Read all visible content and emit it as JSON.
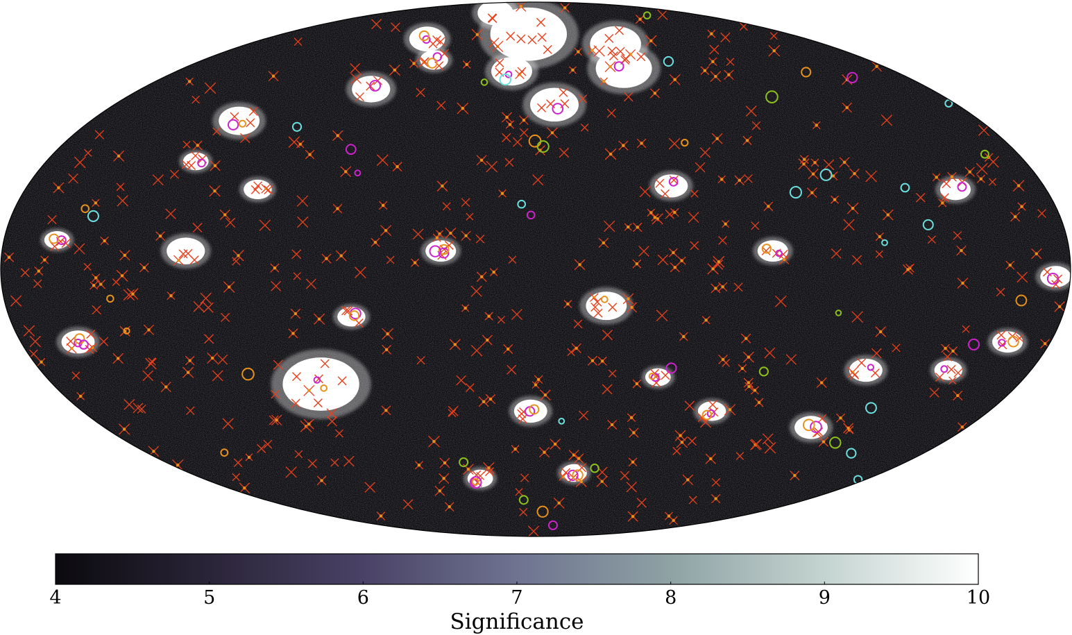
{
  "chart_data": {
    "type": "heatmap",
    "title": "",
    "projection": "mollweide",
    "colorbar": {
      "label": "Significance",
      "ticks": [
        "4",
        "5",
        "6",
        "7",
        "8",
        "9",
        "10"
      ],
      "range": [
        4,
        10
      ],
      "orientation": "horizontal",
      "placement": "bottom",
      "colors": [
        "#0b0a0e",
        "#2a2438",
        "#4a4266",
        "#6e7390",
        "#8fa2a4",
        "#c4d4d0",
        "#ffffff"
      ]
    },
    "background_color": "#0d0c10",
    "bright_regions": [
      {
        "lon": -5,
        "lat": 72,
        "size": 3.0
      },
      {
        "lon": 50,
        "lat": 68,
        "size": 2.0
      },
      {
        "lon": 45,
        "lat": 59,
        "size": 2.2
      },
      {
        "lon": -12,
        "lat": 58,
        "size": 1.6
      },
      {
        "lon": 8,
        "lat": 47,
        "size": 1.9
      },
      {
        "lon": -75,
        "lat": 52,
        "size": 1.5
      },
      {
        "lon": -120,
        "lat": 42,
        "size": 1.6
      },
      {
        "lon": -72,
        "lat": 70,
        "size": 1.4
      },
      {
        "lon": -48,
        "lat": 82,
        "size": 1.4
      },
      {
        "lon": -98,
        "lat": 22,
        "size": 1.1
      },
      {
        "lon": 48,
        "lat": 23,
        "size": 1.3
      },
      {
        "lon": -118,
        "lat": 5,
        "size": 1.5
      },
      {
        "lon": -32,
        "lat": 5,
        "size": 1.2
      },
      {
        "lon": 80,
        "lat": 5,
        "size": 1.2
      },
      {
        "lon": 175,
        "lat": -2,
        "size": 1.2
      },
      {
        "lon": -80,
        "lat": -32,
        "size": 3.0
      },
      {
        "lon": 24,
        "lat": -10,
        "size": 1.6
      },
      {
        "lon": -63,
        "lat": -13,
        "size": 1.1
      },
      {
        "lon": -160,
        "lat": -20,
        "size": 1.3
      },
      {
        "lon": 120,
        "lat": -28,
        "size": 1.3
      },
      {
        "lon": 115,
        "lat": -45,
        "size": 1.3
      },
      {
        "lon": -2,
        "lat": -40,
        "size": 1.3
      },
      {
        "lon": 45,
        "lat": -30,
        "size": 1.0
      },
      {
        "lon": 20,
        "lat": -60,
        "size": 1.0
      },
      {
        "lon": 148,
        "lat": 22,
        "size": 1.2
      },
      {
        "lon": 165,
        "lat": -20,
        "size": 1.2
      },
      {
        "lon": 150,
        "lat": -28,
        "size": 1.1
      },
      {
        "lon": -55,
        "lat": 62,
        "size": 1.1
      },
      {
        "lon": -162,
        "lat": 8,
        "size": 1.0
      },
      {
        "lon": 70,
        "lat": -40,
        "size": 1.1
      },
      {
        "lon": -30,
        "lat": -62,
        "size": 1.0
      },
      {
        "lon": -125,
        "lat": 30,
        "size": 1.0
      }
    ],
    "marker_types": [
      {
        "shape": "x",
        "color": "#e8401c"
      },
      {
        "shape": "circle",
        "color": "#cc22cc"
      },
      {
        "shape": "circle",
        "color": "#e8921c"
      },
      {
        "shape": "circle",
        "color": "#6ce0e0"
      },
      {
        "shape": "circle",
        "color": "#8cc21c"
      }
    ]
  }
}
